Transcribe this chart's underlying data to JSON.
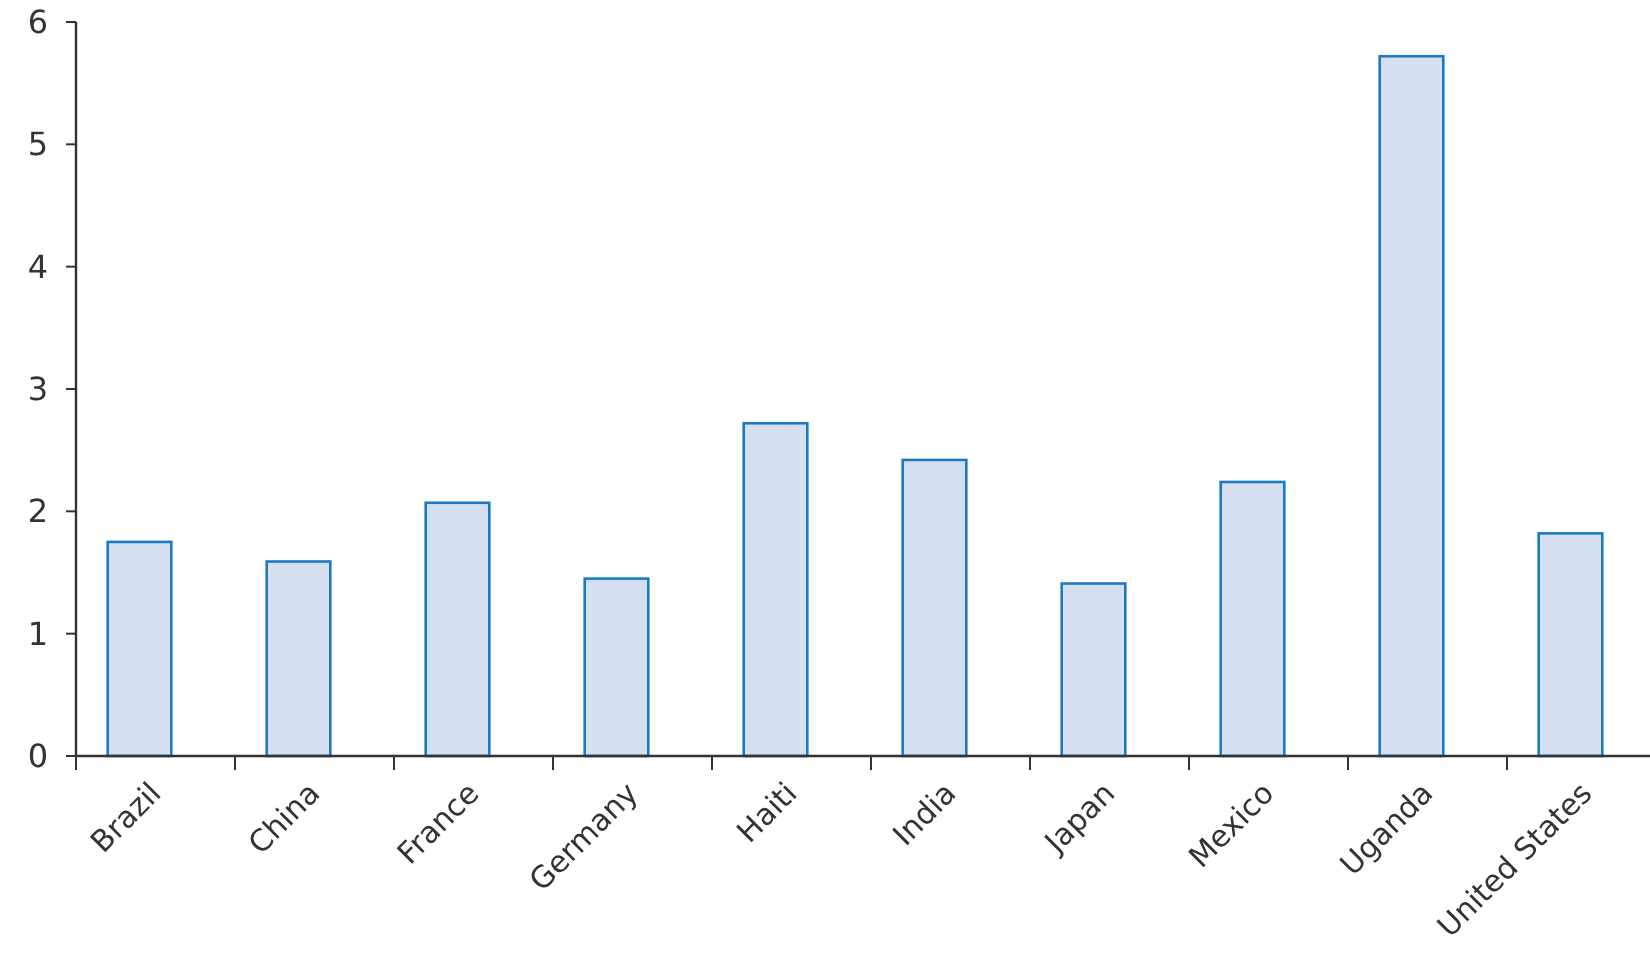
{
  "chart_data": {
    "type": "bar",
    "categories": [
      "Brazil",
      "China",
      "France",
      "Germany",
      "Haiti",
      "India",
      "Japan",
      "Mexico",
      "Uganda",
      "United States"
    ],
    "values": [
      1.75,
      1.59,
      2.07,
      1.45,
      2.72,
      2.42,
      1.41,
      2.24,
      5.72,
      1.82
    ],
    "color": "#d6dff0",
    "ylim": [
      0,
      6
    ],
    "yticks": [
      0,
      1,
      2,
      3,
      4,
      5,
      6
    ]
  }
}
